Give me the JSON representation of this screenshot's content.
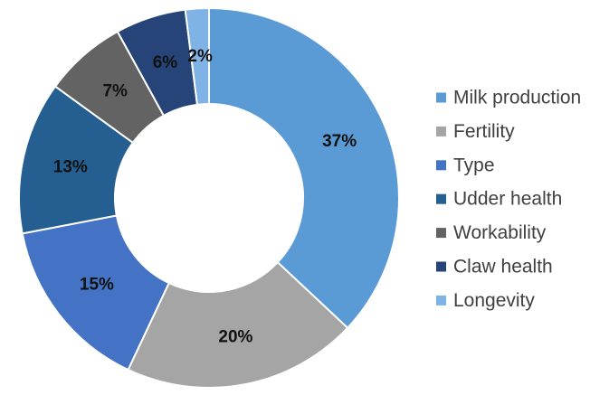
{
  "chart_data": {
    "type": "pie",
    "variant": "donut",
    "categories": [
      "Milk production",
      "Fertility",
      "Type",
      "Udder health",
      "Workability",
      "Claw health",
      "Longevity"
    ],
    "values": [
      37,
      20,
      15,
      13,
      7,
      6,
      2
    ],
    "data_labels": [
      "37%",
      "20%",
      "15%",
      "13%",
      "7%",
      "6%",
      "2%"
    ],
    "colors": [
      "#5B9BD5",
      "#A5A5A5",
      "#4472C4",
      "#255E91",
      "#636363",
      "#264478",
      "#7FB2E5"
    ],
    "legend": {
      "placement": "right",
      "entries": [
        "Milk production",
        "Fertility",
        "Type",
        "Udder health",
        "Workability",
        "Claw health",
        "Longevity"
      ]
    },
    "title": ""
  }
}
